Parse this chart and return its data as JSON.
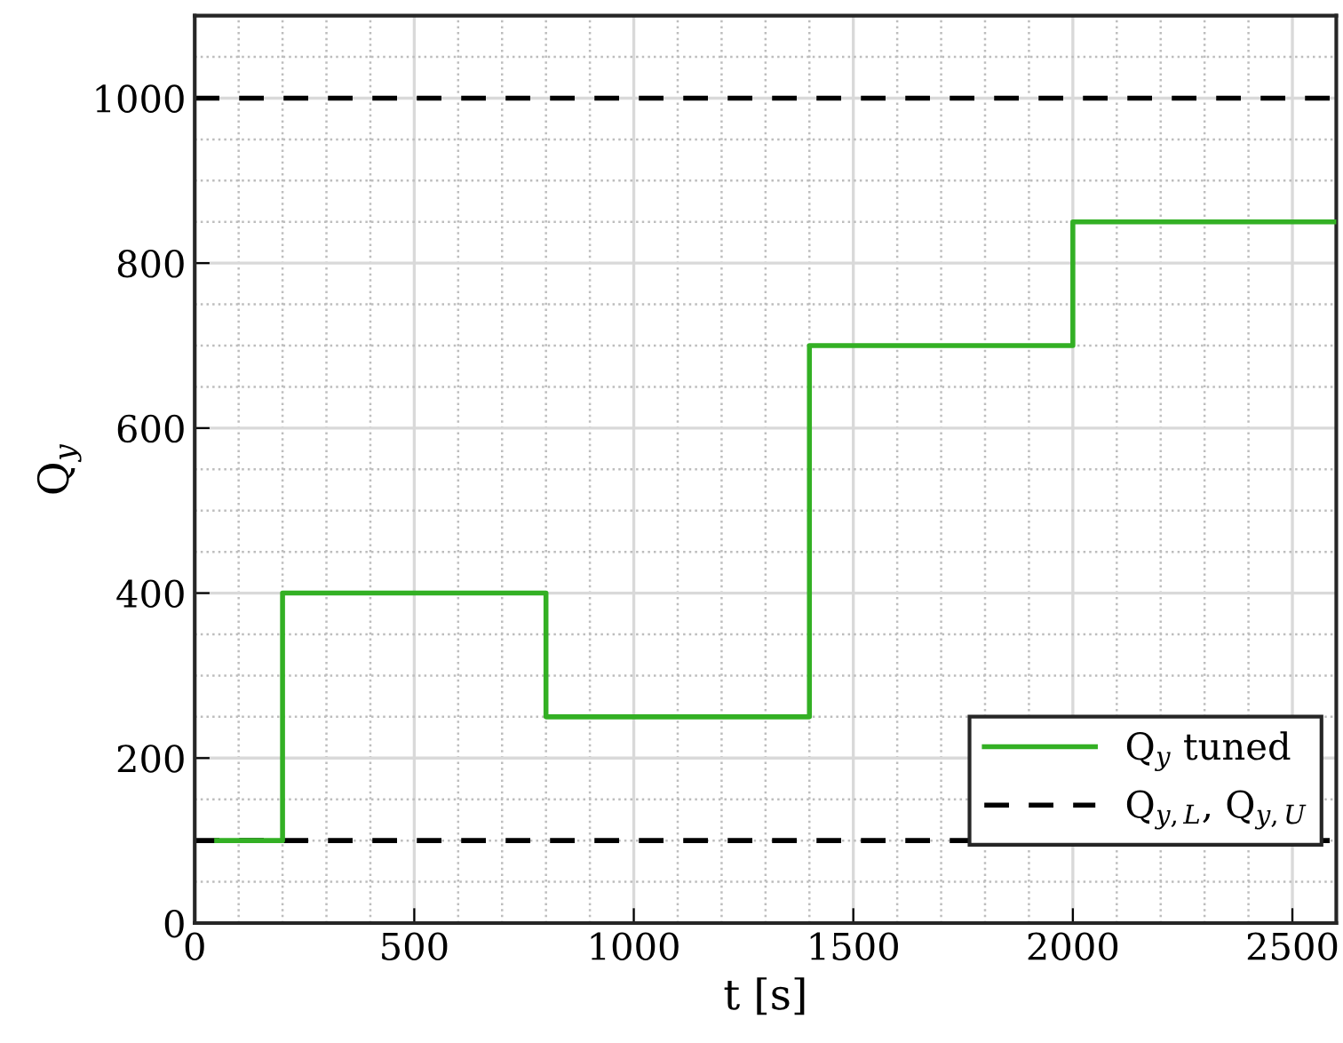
{
  "chart_data": {
    "type": "step",
    "xlabel": "t [s]",
    "ylabel": "Q$_{y}$",
    "x": [
      50,
      200,
      800,
      1400,
      2000,
      2600
    ],
    "series": [
      {
        "name": "Q$_{y}$ tuned",
        "color": "#33b024",
        "values": [
          100,
          400,
          250,
          700,
          850,
          850
        ]
      }
    ],
    "ref_lines": [
      {
        "axis": "y",
        "value": 100,
        "label": "Q$_{y,L}$, Q$_{y,U}$",
        "color": "#000000",
        "line_style": "dashed"
      },
      {
        "axis": "y",
        "value": 1000,
        "label": null,
        "color": "#000000",
        "line_style": "dashed"
      }
    ],
    "xlim": [
      0,
      2600
    ],
    "ylim": [
      0,
      1100
    ],
    "xticks": [
      0,
      500,
      1000,
      1500,
      2000,
      2500
    ],
    "yticks": [
      0,
      200,
      400,
      600,
      800,
      1000
    ],
    "grid": true,
    "legend": "bottom right",
    "line_style": "solid",
    "marker": "none"
  }
}
